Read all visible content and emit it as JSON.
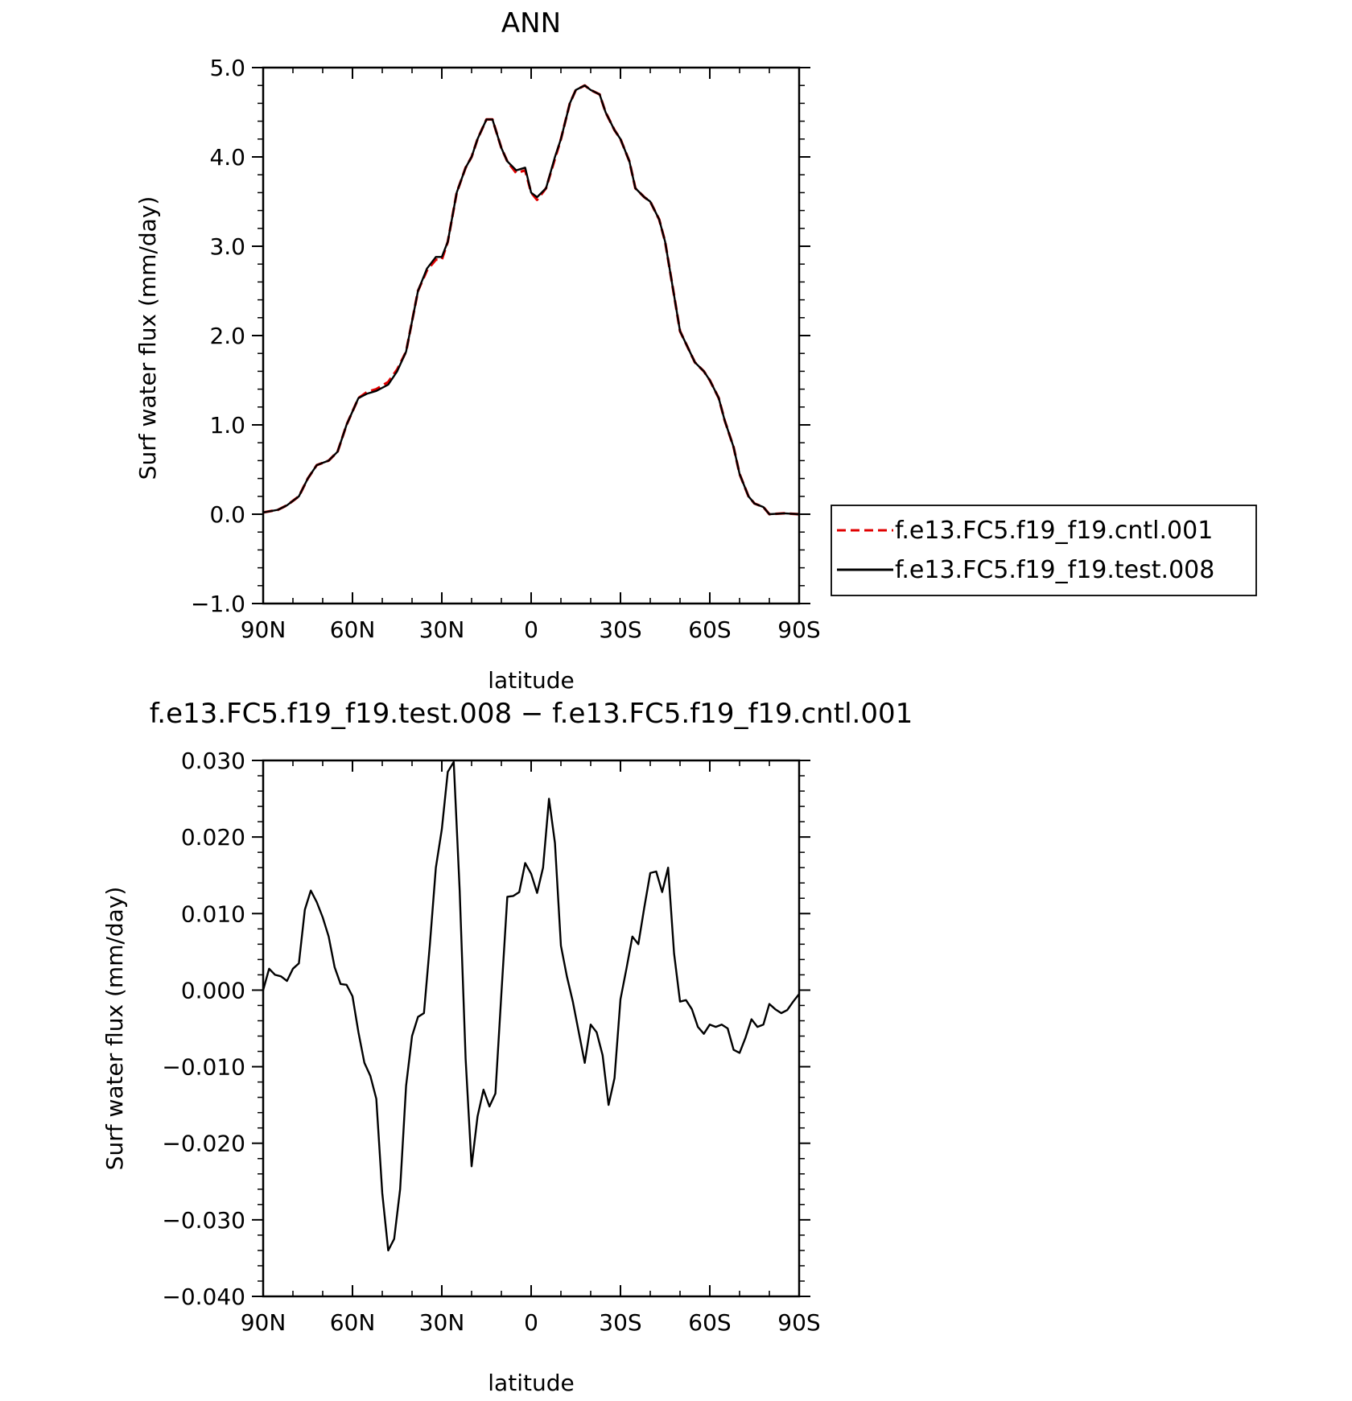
{
  "chart_data": [
    {
      "type": "line",
      "title": "ANN",
      "xlabel": "latitude",
      "ylabel": "Surf water flux (mm/day)",
      "xlim": [
        90,
        -90
      ],
      "ylim": [
        -1.0,
        5.0
      ],
      "x_ticks": [
        90,
        60,
        30,
        0,
        -30,
        -60,
        -90
      ],
      "x_tick_labels": [
        "90N",
        "60N",
        "30N",
        "0",
        "30S",
        "60S",
        "90S"
      ],
      "y_ticks": [
        5.0,
        4.0,
        3.0,
        2.0,
        1.0,
        0.0,
        -1.0
      ],
      "y_tick_labels": [
        "5.0",
        "4.0",
        "3.0",
        "2.0",
        "1.0",
        "0.0",
        "−1.0"
      ],
      "legend_position": "right",
      "x": [
        90,
        85,
        82,
        78,
        75,
        72,
        68,
        65,
        62,
        58,
        55,
        52,
        48,
        45,
        42,
        38,
        35,
        32,
        30,
        28,
        25,
        22,
        20,
        18,
        15,
        13,
        10,
        8,
        5,
        2,
        0,
        -2,
        -5,
        -8,
        -10,
        -13,
        -15,
        -18,
        -20,
        -23,
        -25,
        -28,
        -30,
        -33,
        -35,
        -38,
        -40,
        -43,
        -45,
        -48,
        -50,
        -55,
        -58,
        -60,
        -63,
        -65,
        -68,
        -70,
        -73,
        -75,
        -78,
        -80,
        -85,
        -90
      ],
      "series": [
        {
          "name": "f.e13.FC5.f19_f19.cntl.001",
          "color": "#e00000",
          "dash": true,
          "values": [
            0.02,
            0.05,
            0.1,
            0.2,
            0.4,
            0.55,
            0.6,
            0.7,
            1.0,
            1.3,
            1.37,
            1.4,
            1.48,
            1.62,
            1.82,
            2.5,
            2.73,
            2.85,
            2.85,
            3.05,
            3.6,
            3.88,
            4.0,
            4.2,
            4.42,
            4.42,
            4.1,
            3.95,
            3.82,
            3.85,
            3.6,
            3.52,
            3.65,
            3.98,
            4.2,
            4.6,
            4.75,
            4.8,
            4.75,
            4.7,
            4.5,
            4.3,
            4.2,
            3.95,
            3.65,
            3.55,
            3.5,
            3.3,
            3.05,
            2.45,
            2.05,
            1.7,
            1.6,
            1.5,
            1.3,
            1.05,
            0.75,
            0.45,
            0.2,
            0.12,
            0.08,
            0.0,
            0.01,
            0.0
          ]
        },
        {
          "name": "f.e13.FC5.f19_f19.test.008",
          "color": "#000000",
          "dash": false,
          "values": [
            0.02,
            0.05,
            0.1,
            0.2,
            0.4,
            0.55,
            0.6,
            0.7,
            1.0,
            1.3,
            1.35,
            1.38,
            1.45,
            1.6,
            1.82,
            2.5,
            2.75,
            2.88,
            2.88,
            3.05,
            3.6,
            3.88,
            4.0,
            4.2,
            4.42,
            4.42,
            4.1,
            3.95,
            3.85,
            3.88,
            3.6,
            3.55,
            3.65,
            4.0,
            4.2,
            4.6,
            4.75,
            4.8,
            4.75,
            4.7,
            4.5,
            4.3,
            4.2,
            3.95,
            3.65,
            3.55,
            3.5,
            3.3,
            3.05,
            2.45,
            2.05,
            1.7,
            1.6,
            1.5,
            1.3,
            1.05,
            0.75,
            0.45,
            0.2,
            0.12,
            0.08,
            0.0,
            0.01,
            0.0
          ]
        }
      ]
    },
    {
      "type": "line",
      "title": "f.e13.FC5.f19_f19.test.008 − f.e13.FC5.f19_f19.cntl.001",
      "xlabel": "latitude",
      "ylabel": "Surf water flux (mm/day)",
      "xlim": [
        90,
        -90
      ],
      "ylim": [
        -0.04,
        0.03
      ],
      "x_ticks": [
        90,
        60,
        30,
        0,
        -30,
        -60,
        -90
      ],
      "x_tick_labels": [
        "90N",
        "60N",
        "30N",
        "0",
        "30S",
        "60S",
        "90S"
      ],
      "y_ticks": [
        0.03,
        0.02,
        0.01,
        0.0,
        -0.01,
        -0.02,
        -0.03,
        -0.04
      ],
      "y_tick_labels": [
        "0.030",
        "0.020",
        "0.010",
        "0.000",
        "−0.010",
        "−0.020",
        "−0.030",
        "−0.040"
      ],
      "x": [
        90,
        88,
        86,
        84,
        82,
        80,
        78,
        76,
        74,
        72,
        70,
        68,
        66,
        64,
        62,
        60,
        58,
        56,
        54,
        52,
        50,
        48,
        46,
        44,
        42,
        40,
        38,
        36,
        34,
        32,
        30,
        28,
        26,
        24,
        22,
        20,
        18,
        16,
        14,
        12,
        10,
        8,
        6,
        4,
        2,
        0,
        -2,
        -4,
        -6,
        -8,
        -10,
        -12,
        -14,
        -16,
        -18,
        -20,
        -22,
        -24,
        -26,
        -28,
        -30,
        -32,
        -34,
        -36,
        -38,
        -40,
        -42,
        -44,
        -46,
        -48,
        -50,
        -52,
        -54,
        -56,
        -58,
        -60,
        -62,
        -64,
        -66,
        -68,
        -70,
        -72,
        -74,
        -76,
        -78,
        -80,
        -82,
        -84,
        -86,
        -88,
        -90
      ],
      "series": [
        {
          "color": "#000000",
          "values": [
            0.0,
            0.0028,
            0.002,
            0.0018,
            0.0012,
            0.0028,
            0.0035,
            0.0105,
            0.013,
            0.0115,
            0.0095,
            0.007,
            0.003,
            0.0008,
            0.0007,
            -0.0008,
            -0.0055,
            -0.0095,
            -0.0112,
            -0.0142,
            -0.0265,
            -0.034,
            -0.0325,
            -0.026,
            -0.0125,
            -0.006,
            -0.0035,
            -0.003,
            0.006,
            0.016,
            0.021,
            0.0285,
            0.0298,
            0.013,
            -0.009,
            -0.023,
            -0.0165,
            -0.013,
            -0.0152,
            -0.0135,
            -0.0005,
            0.0122,
            0.0123,
            0.0128,
            0.0166,
            0.0152,
            0.0127,
            0.016,
            0.025,
            0.0192,
            0.0058,
            0.0018,
            -0.0015,
            -0.0055,
            -0.0095,
            -0.0045,
            -0.0055,
            -0.0085,
            -0.015,
            -0.0115,
            -0.0012,
            0.0028,
            0.007,
            0.006,
            0.0108,
            0.0153,
            0.0155,
            0.0128,
            0.016,
            0.0048,
            -0.0015,
            -0.0013,
            -0.0025,
            -0.0048,
            -0.0057,
            -0.0045,
            -0.0048,
            -0.0045,
            -0.005,
            -0.0078,
            -0.0082,
            -0.0062,
            -0.0038,
            -0.0048,
            -0.0045,
            -0.0018,
            -0.0025,
            -0.003,
            -0.0026,
            -0.0015,
            -0.0005
          ]
        }
      ]
    }
  ]
}
